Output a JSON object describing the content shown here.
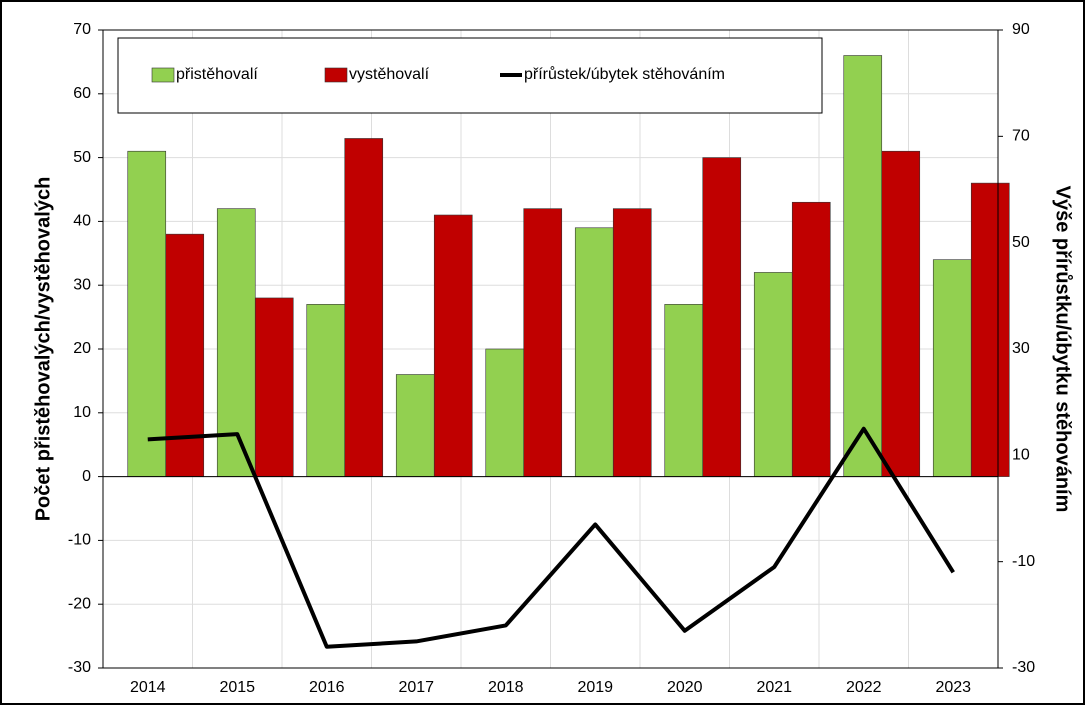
{
  "chart_data": {
    "type": "bar",
    "categories": [
      "2014",
      "2015",
      "2016",
      "2017",
      "2018",
      "2019",
      "2020",
      "2021",
      "2022",
      "2023"
    ],
    "series": [
      {
        "name": "přistěhovalí",
        "color": "#92d050",
        "type": "bar",
        "values": [
          51,
          42,
          27,
          16,
          20,
          39,
          27,
          32,
          66,
          34
        ]
      },
      {
        "name": "vystěhovalí",
        "color": "#c00000",
        "type": "bar",
        "values": [
          38,
          28,
          53,
          41,
          42,
          42,
          50,
          43,
          51,
          46
        ]
      },
      {
        "name": "přírůstek/úbytek stěhováním",
        "color": "#000000",
        "type": "line",
        "axis": "y2",
        "values": [
          13,
          14,
          -26,
          -25,
          -22,
          -3,
          -23,
          -11,
          15,
          -12
        ]
      }
    ],
    "ylabel": "Počet přistěhovalých/vystěhovalých",
    "y2label": "Výše přírůstku/úbytku stěhováním",
    "ylim": [
      -30,
      70
    ],
    "yticks": [
      -30,
      -20,
      -10,
      0,
      10,
      20,
      30,
      40,
      50,
      60,
      70
    ],
    "y2lim": [
      -30,
      90
    ],
    "y2ticks": [
      -30,
      -10,
      10,
      30,
      50,
      70,
      90
    ],
    "grid": true,
    "legend": "top"
  }
}
